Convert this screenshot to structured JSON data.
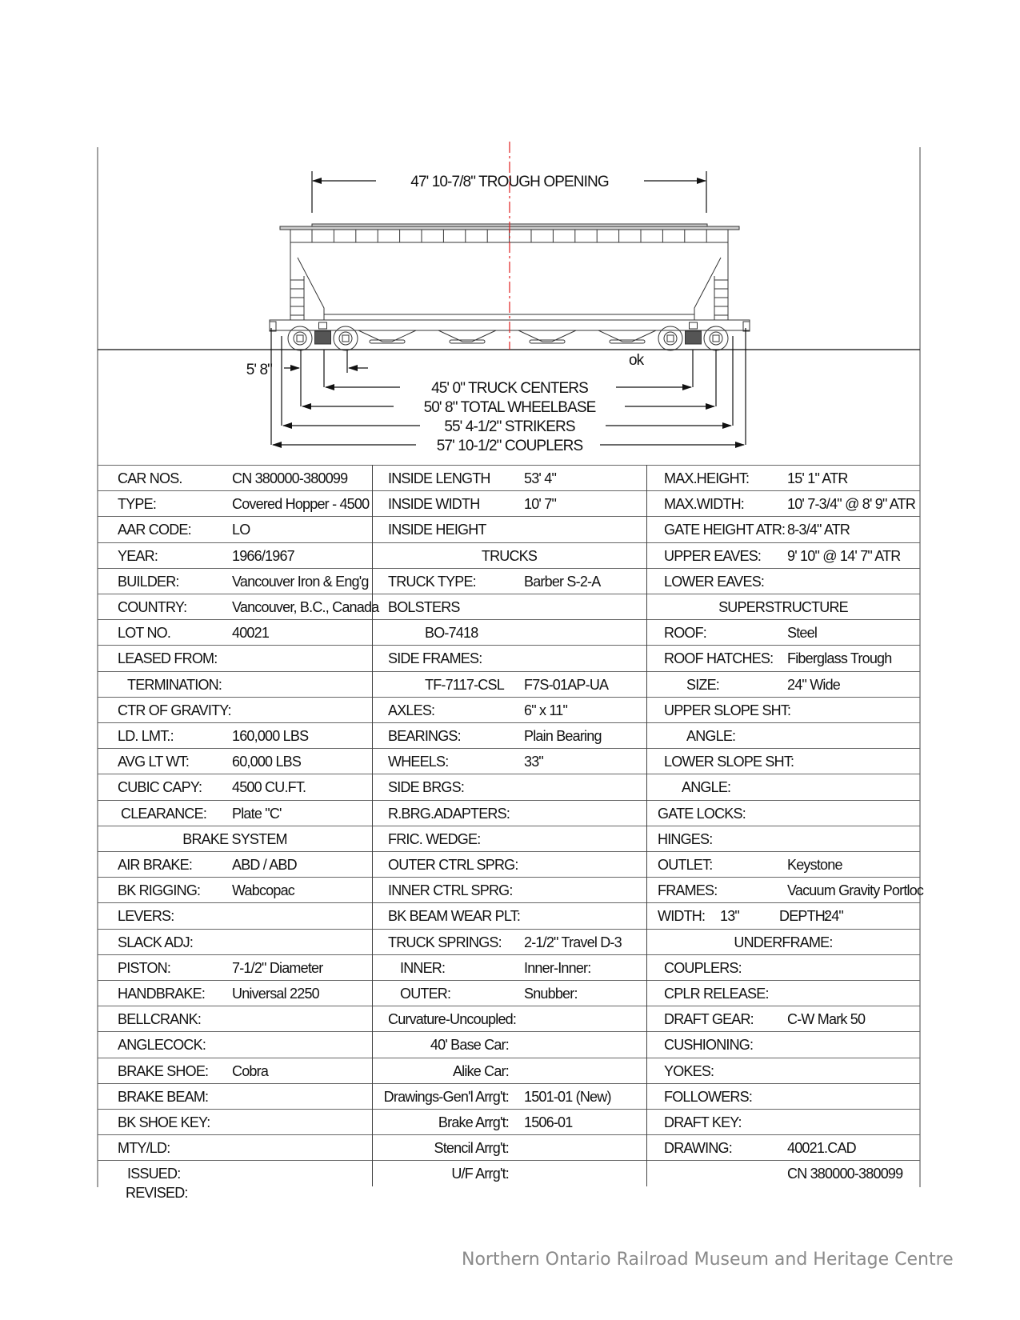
{
  "drawing": {
    "trough_opening": "47' 10-7/8\" TROUGH OPENING",
    "axle_spacing": "5' 8\"",
    "check_mark": "ok",
    "truck_centers": "45' 0\" TRUCK CENTERS",
    "total_wheelbase": "50' 8\" TOTAL WHEELBASE",
    "strikers": "55' 4-1/2\" STRIKERS",
    "couplers": "57' 10-1/2\" COUPLERS",
    "centerline_color": "#e02020",
    "check_color": "#c81e1e"
  },
  "table": {
    "rows": [
      [
        {
          "label": "CAR NOS.",
          "value": "CN 380000-380099"
        },
        {
          "label": "INSIDE LENGTH",
          "value": "53' 4\""
        },
        {
          "label": "MAX.HEIGHT:",
          "value": "15' 1\" ATR"
        }
      ],
      [
        {
          "label": "TYPE:",
          "value": "Covered Hopper - 4500"
        },
        {
          "label": "INSIDE WIDTH",
          "value": "10' 7\""
        },
        {
          "label": "MAX.WIDTH:",
          "value": "10' 7-3/4\" @ 8' 9\" ATR"
        }
      ],
      [
        {
          "label": "AAR CODE:",
          "value": "LO"
        },
        {
          "label": "INSIDE HEIGHT"
        },
        {
          "label": "GATE HEIGHT ATR:",
          "value": "8-3/4\" ATR"
        }
      ],
      [
        {
          "label": "YEAR:",
          "value": "1966/1967"
        },
        {
          "heading": "TRUCKS"
        },
        {
          "label": "UPPER EAVES:",
          "value": "9' 10\" @ 14' 7\" ATR"
        }
      ],
      [
        {
          "label": "BUILDER:",
          "value": "Vancouver Iron & Eng'g"
        },
        {
          "label": "TRUCK TYPE:",
          "value": "Barber S-2-A"
        },
        {
          "label": "LOWER EAVES:"
        }
      ],
      [
        {
          "label": "COUNTRY:",
          "value": "Vancouver, B.C., Canada"
        },
        {
          "label": "BOLSTERS"
        },
        {
          "heading": "SUPERSTRUCTURE"
        }
      ],
      [
        {
          "label": "LOT NO.",
          "value": "40021"
        },
        {
          "label": "BO-7418"
        },
        {
          "label": "ROOF:",
          "value": "Steel"
        }
      ],
      [
        {
          "label": "LEASED FROM:"
        },
        {
          "label": "SIDE FRAMES:"
        },
        {
          "label": "ROOF HATCHES:",
          "value": "Fiberglass Trough"
        }
      ],
      [
        {
          "label": "TERMINATION:"
        },
        {
          "label": "TF-7117-CSL",
          "value": "F7S-01AP-UA"
        },
        {
          "label": "SIZE:",
          "value": "24\" Wide"
        }
      ],
      [
        {
          "label": "CTR OF GRAVITY:"
        },
        {
          "label": "AXLES:",
          "value": "6\" x 11\""
        },
        {
          "label": "UPPER SLOPE SHT:"
        }
      ],
      [
        {
          "label": "LD. LMT.:",
          "value": "160,000 LBS"
        },
        {
          "label": "BEARINGS:",
          "value": "Plain Bearing"
        },
        {
          "label": "ANGLE:"
        }
      ],
      [
        {
          "label": "AVG LT WT:",
          "value": "60,000 LBS"
        },
        {
          "label": "WHEELS:",
          "value": "33\""
        },
        {
          "label": "LOWER SLOPE SHT:"
        }
      ],
      [
        {
          "label": "CUBIC CAPY:",
          "value": "4500 CU.FT."
        },
        {
          "label": "SIDE BRGS:"
        },
        {
          "label": "ANGLE:"
        }
      ],
      [
        {
          "label": "CLEARANCE:",
          "value": "Plate \"C'"
        },
        {
          "label": "R.BRG.ADAPTERS:"
        },
        {
          "label": "GATE LOCKS:"
        }
      ],
      [
        {
          "heading": "BRAKE SYSTEM"
        },
        {
          "label": "FRIC. WEDGE:"
        },
        {
          "label": "HINGES:"
        }
      ],
      [
        {
          "label": "AIR BRAKE:",
          "value": "ABD / ABD"
        },
        {
          "label": "OUTER CTRL SPRG:"
        },
        {
          "label": "OUTLET:",
          "value": "Keystone"
        }
      ],
      [
        {
          "label": "BK RIGGING:",
          "value": "Wabcopac"
        },
        {
          "label": "INNER CTRL SPRG:"
        },
        {
          "label": "FRAMES:",
          "value": "Vacuum Gravity Portloc"
        }
      ],
      [
        {
          "label": "LEVERS:"
        },
        {
          "label": "BK BEAM WEAR PLT:"
        },
        {
          "label": "WIDTH:",
          "value": "13\"",
          "label2": "DEPTH:",
          "value2": "24\""
        }
      ],
      [
        {
          "label": "SLACK ADJ:"
        },
        {
          "label": "TRUCK SPRINGS:",
          "value": "2-1/2\" Travel  D-3"
        },
        {
          "heading": "UNDERFRAME:"
        }
      ],
      [
        {
          "label": "PISTON:",
          "value": "7-1/2\" Diameter"
        },
        {
          "label": "INNER:",
          "value": "Inner-Inner:"
        },
        {
          "label": "COUPLERS:"
        }
      ],
      [
        {
          "label": "HANDBRAKE:",
          "value": "Universal  2250"
        },
        {
          "label": "OUTER:",
          "value": "Snubber:"
        },
        {
          "label": "CPLR RELEASE:"
        }
      ],
      [
        {
          "label": "BELLCRANK:"
        },
        {
          "label": "Curvature-Uncoupled:"
        },
        {
          "label": "DRAFT GEAR:",
          "value": "C-W  Mark 50"
        }
      ],
      [
        {
          "label": "ANGLECOCK:"
        },
        {
          "label": "40' Base Car:"
        },
        {
          "label": "CUSHIONING:"
        }
      ],
      [
        {
          "label": "BRAKE SHOE:",
          "value": "Cobra"
        },
        {
          "label": "Alike Car:"
        },
        {
          "label": "YOKES:"
        }
      ],
      [
        {
          "label": "BRAKE BEAM:"
        },
        {
          "label": "Drawings-Gen'l Arrg't:",
          "value": "1501-01  (New)"
        },
        {
          "label": "FOLLOWERS:"
        }
      ],
      [
        {
          "label": "BK SHOE KEY:"
        },
        {
          "label": "Brake Arrg't:",
          "value": "1506-01"
        },
        {
          "label": "DRAFT KEY:"
        }
      ],
      [
        {
          "label": "MTY/LD:"
        },
        {
          "label": "Stencil Arrg't:"
        },
        {
          "label": "DRAWING:",
          "value": "40021.CAD"
        }
      ],
      [
        {
          "label": "ISSUED:"
        },
        {
          "label": "U/F Arrg't:"
        },
        {
          "value": "CN 380000-380099"
        }
      ]
    ],
    "revised_label": "REVISED:"
  },
  "footer": {
    "credit": "Northern Ontario Railroad Museum and Heritage Centre"
  }
}
